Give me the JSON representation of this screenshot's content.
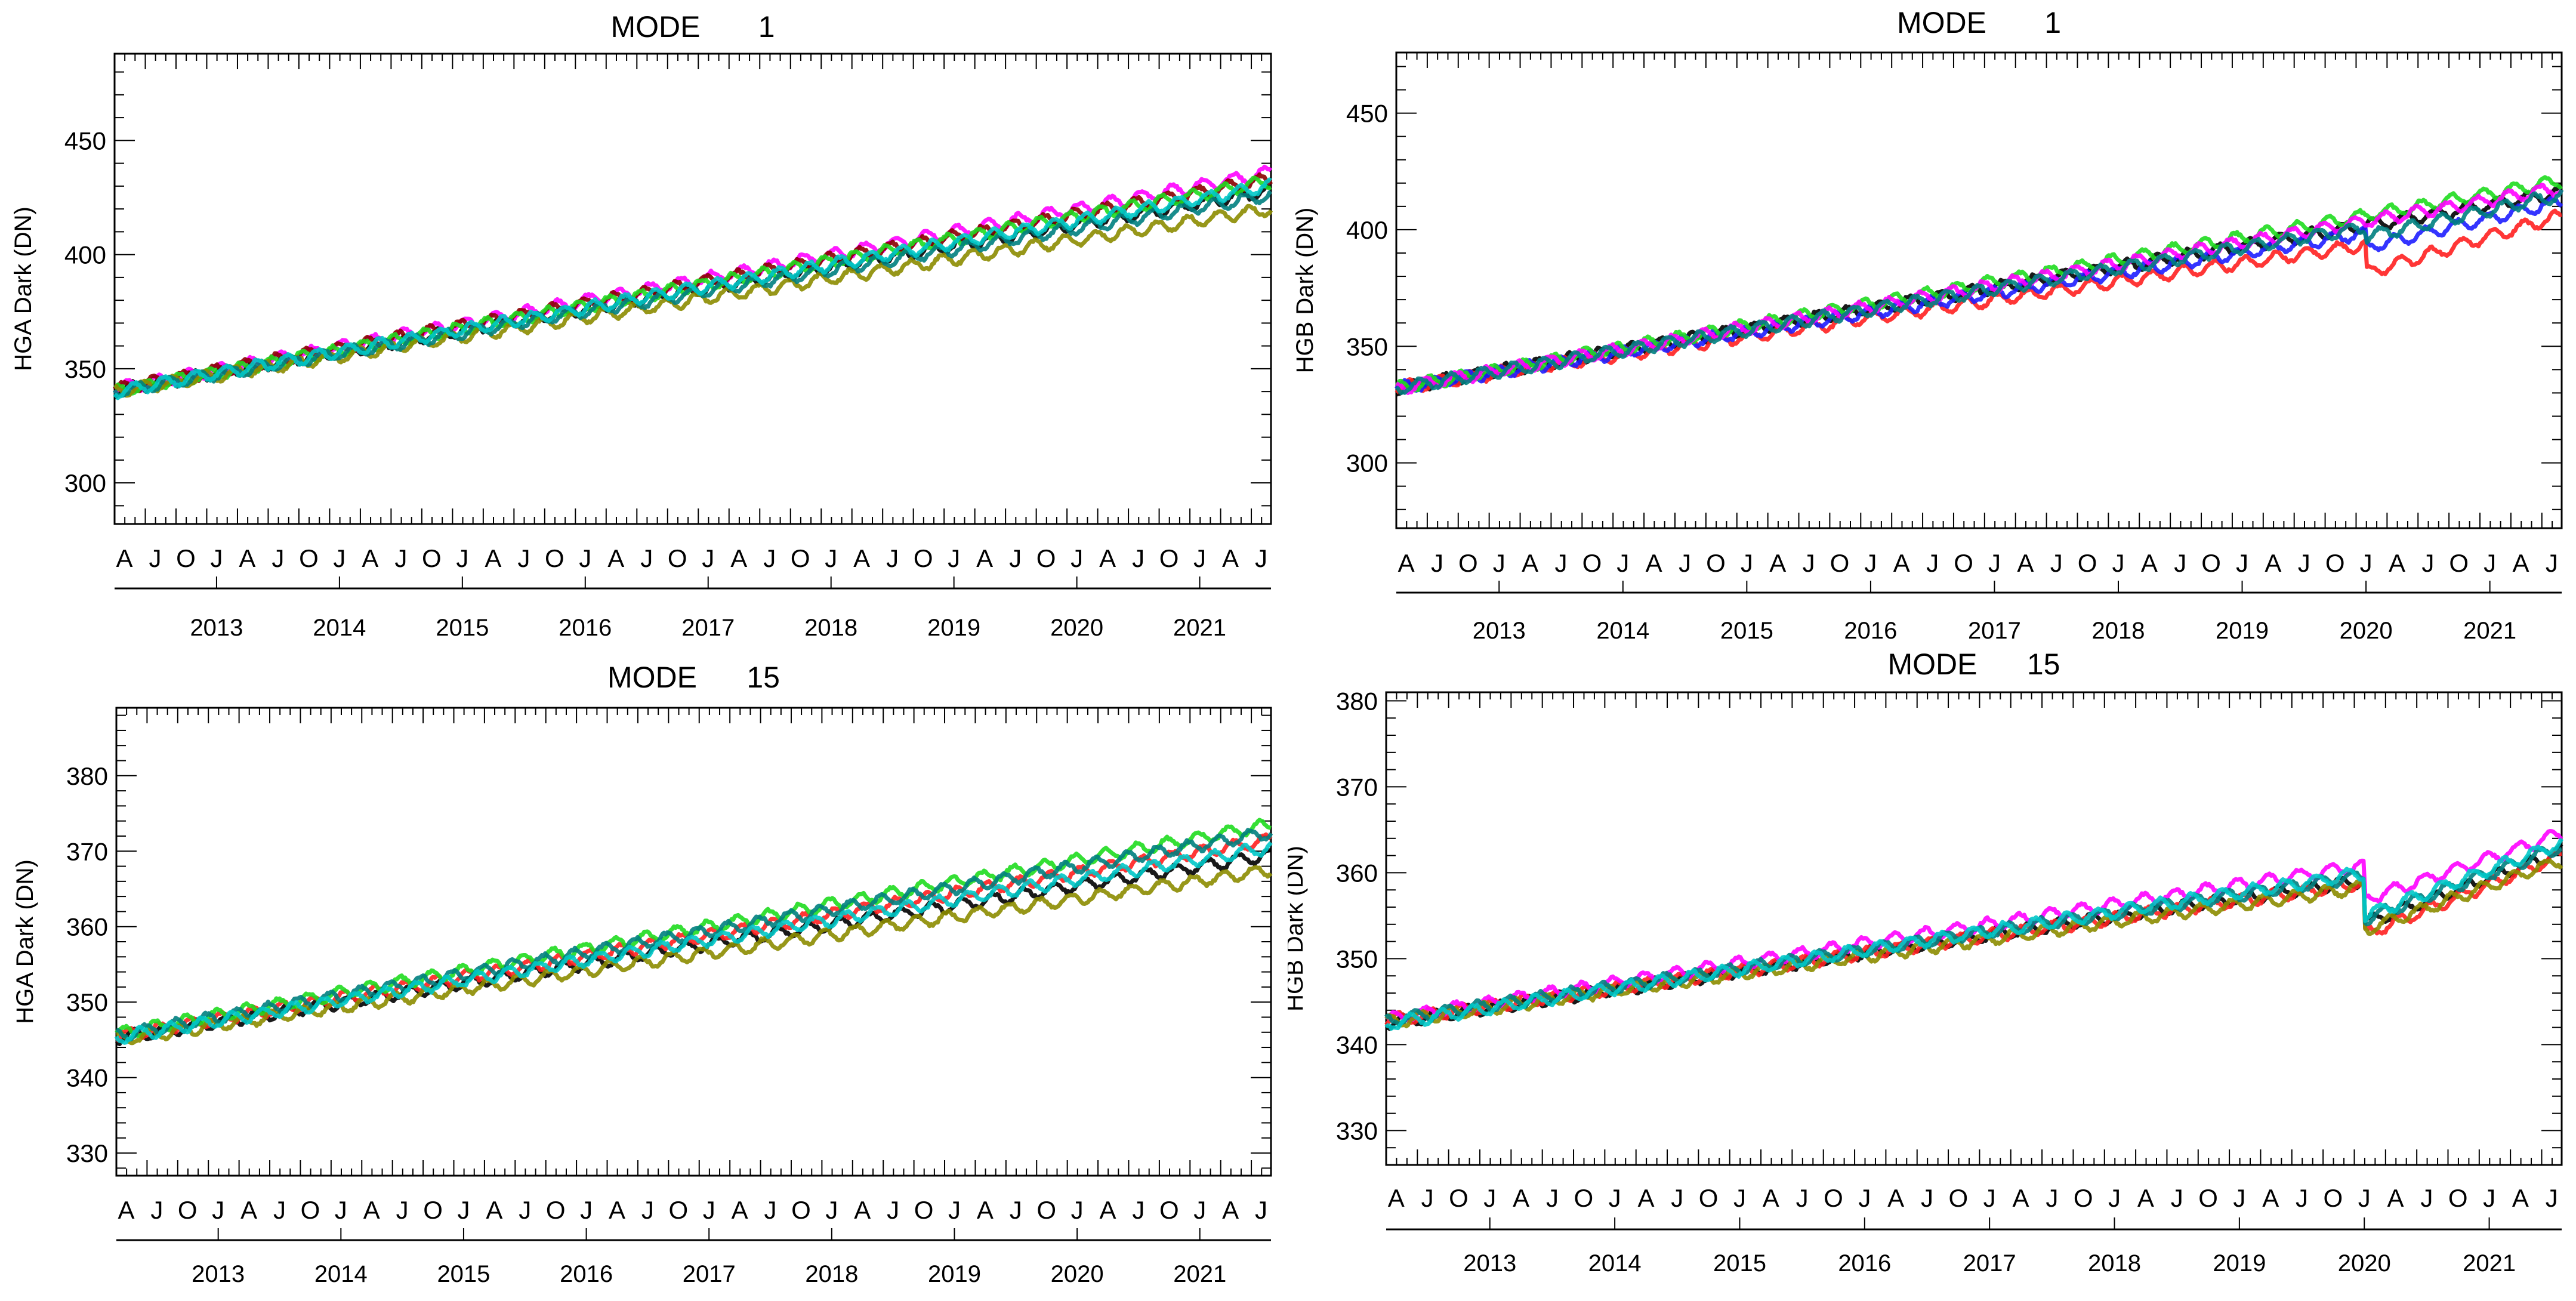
{
  "colors": {
    "black": "#000000",
    "red": "#ff2020",
    "magenta": "#ff00ff",
    "green": "#1fdc1f",
    "olive": "#8c8c00",
    "teal": "#008080",
    "cyan": "#00c8c8",
    "blue": "#1e1eff",
    "darkred": "#8b0000"
  },
  "chart_data": [
    {
      "id": "hga-mode1",
      "type": "line",
      "title": "MODE       1",
      "ylabel": "HGA Dark (DN)",
      "xlabel": "",
      "ylim": [
        282,
        488
      ],
      "yticks": [
        300,
        350,
        400,
        450
      ],
      "xlim": [
        2012.17,
        2021.58
      ],
      "month_labels": [
        "A",
        "J",
        "O",
        "J",
        "A",
        "J",
        "O",
        "J",
        "A",
        "J",
        "O",
        "J",
        "A",
        "J",
        "O",
        "J",
        "A",
        "J",
        "O",
        "J",
        "A",
        "J",
        "O",
        "J",
        "A",
        "J",
        "O",
        "J",
        "A",
        "J",
        "O",
        "J",
        "A",
        "J",
        "O",
        "J",
        "A",
        "J"
      ],
      "year_labels": [
        "2013",
        "2014",
        "2015",
        "2016",
        "2017",
        "2018",
        "2019",
        "2020",
        "2021"
      ],
      "series": [
        {
          "name": "black",
          "color": "#000000",
          "start": 340.5,
          "end": 428,
          "jumps": []
        },
        {
          "name": "magenta",
          "color": "#ff00ff",
          "start": 341,
          "end": 436,
          "jumps": []
        },
        {
          "name": "darkred",
          "color": "#8b0000",
          "start": 341,
          "end": 433,
          "jumps": []
        },
        {
          "name": "green",
          "color": "#1fdc1f",
          "start": 340,
          "end": 432,
          "jumps": []
        },
        {
          "name": "olive",
          "color": "#8c8c00",
          "start": 340,
          "end": 420,
          "jumps": []
        },
        {
          "name": "teal",
          "color": "#008080",
          "start": 340,
          "end": 426,
          "jumps": []
        },
        {
          "name": "cyan",
          "color": "#00c8c8",
          "start": 340,
          "end": 430,
          "jumps": []
        }
      ]
    },
    {
      "id": "hgb-mode1",
      "type": "line",
      "title": "MODE       1",
      "ylabel": "HGB Dark (DN)",
      "xlabel": "",
      "ylim": [
        272,
        476
      ],
      "yticks": [
        300,
        350,
        400,
        450
      ],
      "xlim": [
        2012.17,
        2021.58
      ],
      "month_labels": [
        "A",
        "J",
        "O",
        "J",
        "A",
        "J",
        "O",
        "J",
        "A",
        "J",
        "O",
        "J",
        "A",
        "J",
        "O",
        "J",
        "A",
        "J",
        "O",
        "J",
        "A",
        "J",
        "O",
        "J",
        "A",
        "J",
        "O",
        "J",
        "A",
        "J",
        "O",
        "J",
        "A",
        "J",
        "O",
        "J",
        "A",
        "J"
      ],
      "year_labels": [
        "2013",
        "2014",
        "2015",
        "2016",
        "2017",
        "2018",
        "2019",
        "2020",
        "2021"
      ],
      "series": [
        {
          "name": "black",
          "color": "#000000",
          "start": 332,
          "end": 416,
          "jumps": []
        },
        {
          "name": "red",
          "color": "#ff2020",
          "start": 332,
          "end": 406,
          "jumps": [
            {
              "x": 2020.0,
              "dy": -12
            }
          ]
        },
        {
          "name": "blue",
          "color": "#1e1eff",
          "start": 332,
          "end": 412,
          "jumps": [
            {
              "x": 2020.0,
              "dy": -6
            }
          ]
        },
        {
          "name": "green",
          "color": "#1fdc1f",
          "start": 332,
          "end": 421,
          "jumps": []
        },
        {
          "name": "magenta",
          "color": "#ff00ff",
          "start": 332,
          "end": 418,
          "jumps": []
        },
        {
          "name": "teal",
          "color": "#008080",
          "start": 332,
          "end": 415,
          "jumps": [
            {
              "x": 2020.0,
              "dy": -4
            }
          ]
        }
      ]
    },
    {
      "id": "hga-mode15",
      "type": "line",
      "title": "MODE      15",
      "ylabel": "HGA Dark (DN)",
      "xlabel": "",
      "ylim": [
        327,
        389
      ],
      "yticks": [
        330,
        340,
        350,
        360,
        370,
        380
      ],
      "xlim": [
        2012.17,
        2021.58
      ],
      "month_labels": [
        "A",
        "J",
        "O",
        "J",
        "A",
        "J",
        "O",
        "J",
        "A",
        "J",
        "O",
        "J",
        "A",
        "J",
        "O",
        "J",
        "A",
        "J",
        "O",
        "J",
        "A",
        "J",
        "O",
        "J",
        "A",
        "J",
        "O",
        "J",
        "A",
        "J",
        "O",
        "J",
        "A",
        "J",
        "O",
        "J",
        "A",
        "J"
      ],
      "year_labels": [
        "2013",
        "2014",
        "2015",
        "2016",
        "2017",
        "2018",
        "2019",
        "2020",
        "2021"
      ],
      "series": [
        {
          "name": "black",
          "color": "#000000",
          "start": 345.2,
          "end": 369.5,
          "jumps": []
        },
        {
          "name": "red",
          "color": "#ff2020",
          "start": 345.5,
          "end": 371.5,
          "jumps": []
        },
        {
          "name": "green",
          "color": "#1fdc1f",
          "start": 345.8,
          "end": 373.5,
          "jumps": []
        },
        {
          "name": "olive",
          "color": "#8c8c00",
          "start": 345.0,
          "end": 367.5,
          "jumps": []
        },
        {
          "name": "teal",
          "color": "#008080",
          "start": 345.6,
          "end": 372.5,
          "jumps": []
        },
        {
          "name": "cyan",
          "color": "#00c8c8",
          "start": 345.3,
          "end": 370.5,
          "jumps": []
        }
      ]
    },
    {
      "id": "hgb-mode15",
      "type": "line",
      "title": "MODE      15",
      "ylabel": "HGB Dark (DN)",
      "xlabel": "",
      "ylim": [
        326,
        381
      ],
      "yticks": [
        330,
        340,
        350,
        360,
        370,
        380
      ],
      "xlim": [
        2012.17,
        2021.58
      ],
      "month_labels": [
        "A",
        "J",
        "O",
        "J",
        "A",
        "J",
        "O",
        "J",
        "A",
        "J",
        "O",
        "J",
        "A",
        "J",
        "O",
        "J",
        "A",
        "J",
        "O",
        "J",
        "A",
        "J",
        "O",
        "J",
        "A",
        "J",
        "O",
        "J",
        "A",
        "J",
        "O",
        "J",
        "A",
        "J",
        "O",
        "J",
        "A",
        "J"
      ],
      "year_labels": [
        "2013",
        "2014",
        "2015",
        "2016",
        "2017",
        "2018",
        "2019",
        "2020",
        "2021"
      ],
      "series": [
        {
          "name": "black",
          "color": "#000000",
          "start": 342.5,
          "end": 362.5,
          "jumps": [
            {
              "x": 2020.0,
              "dy": -5
            }
          ]
        },
        {
          "name": "red",
          "color": "#ff2020",
          "start": 342.8,
          "end": 362.0,
          "jumps": [
            {
              "x": 2020.0,
              "dy": -6
            }
          ]
        },
        {
          "name": "magenta",
          "color": "#ff00ff",
          "start": 343.0,
          "end": 364.5,
          "jumps": [
            {
              "x": 2020.0,
              "dy": -4
            }
          ]
        },
        {
          "name": "olive",
          "color": "#8c8c00",
          "start": 342.6,
          "end": 361.5,
          "jumps": [
            {
              "x": 2020.0,
              "dy": -5
            }
          ]
        },
        {
          "name": "teal",
          "color": "#008080",
          "start": 342.8,
          "end": 363.0,
          "jumps": [
            {
              "x": 2020.0,
              "dy": -5
            }
          ]
        },
        {
          "name": "cyan",
          "color": "#00c8c8",
          "start": 342.4,
          "end": 363.5,
          "jumps": [
            {
              "x": 2020.0,
              "dy": -5
            }
          ]
        }
      ]
    }
  ]
}
